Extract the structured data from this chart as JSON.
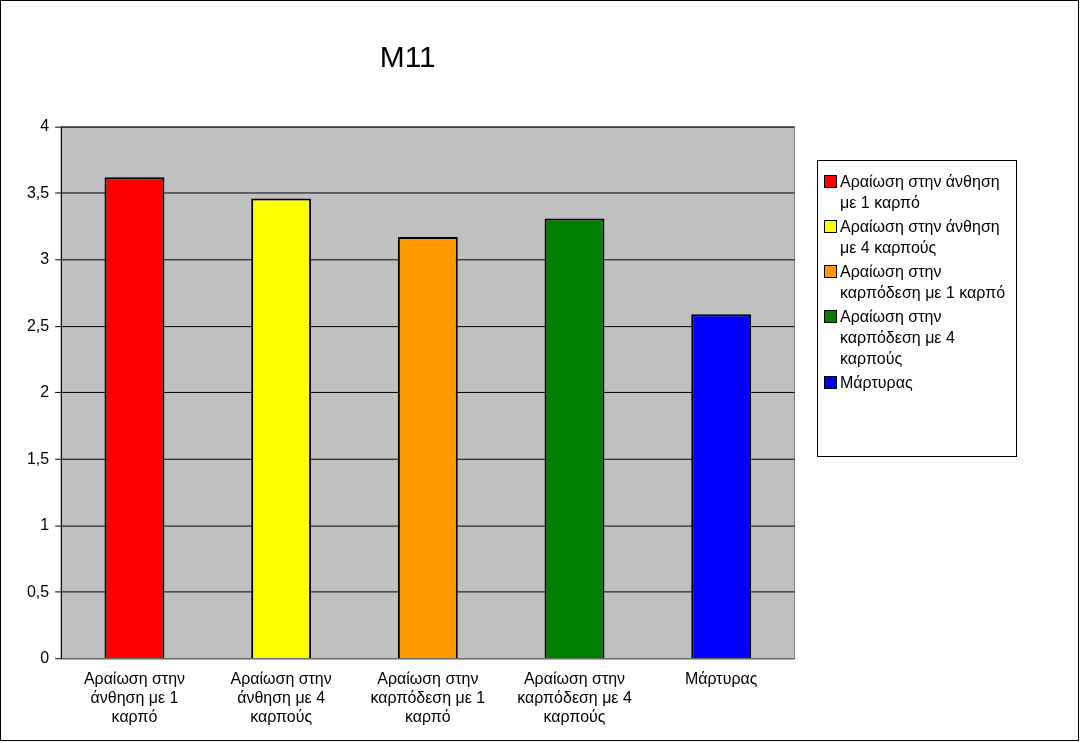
{
  "chart_data": {
    "type": "bar",
    "title": "M11",
    "categories": [
      "Αραίωση στην άνθηση με 1 καρπό",
      "Αραίωση στην άνθηση με 4 καρπούς",
      "Αραίωση στην καρπόδεση με 1 καρπό",
      "Αραίωση στην καρπόδεση με 4 καρπούς",
      "Μάρτυρας"
    ],
    "series": [
      {
        "name": "Αραίωση στην άνθηση με 1 καρπό",
        "color": "#ff0000",
        "values": [
          3.62,
          null,
          null,
          null,
          null
        ]
      },
      {
        "name": "Αραίωση στην άνθηση με 4 καρπούς",
        "color": "#ffff00",
        "values": [
          null,
          3.46,
          null,
          null,
          null
        ]
      },
      {
        "name": "Αραίωση στην καρπόδεση με 1 καρπό",
        "color": "#ff9900",
        "values": [
          null,
          null,
          3.17,
          null,
          null
        ]
      },
      {
        "name": "Αραίωση στην καρπόδεση με 4 καρπούς",
        "color": "#008000",
        "values": [
          null,
          null,
          null,
          3.31,
          null
        ]
      },
      {
        "name": "Μάρτυρας",
        "color": "#0000ff",
        "values": [
          null,
          null,
          null,
          null,
          2.59
        ]
      }
    ],
    "ylim": [
      0,
      4
    ],
    "yticks": [
      0,
      {
        "value": 0.5,
        "label": "0,5"
      },
      1,
      {
        "value": 1.5,
        "label": "1,5"
      },
      2,
      {
        "value": 2.5,
        "label": "2,5"
      },
      3,
      {
        "value": 3.5,
        "label": "3,5"
      },
      4
    ],
    "grid": "y",
    "legend": "right"
  }
}
